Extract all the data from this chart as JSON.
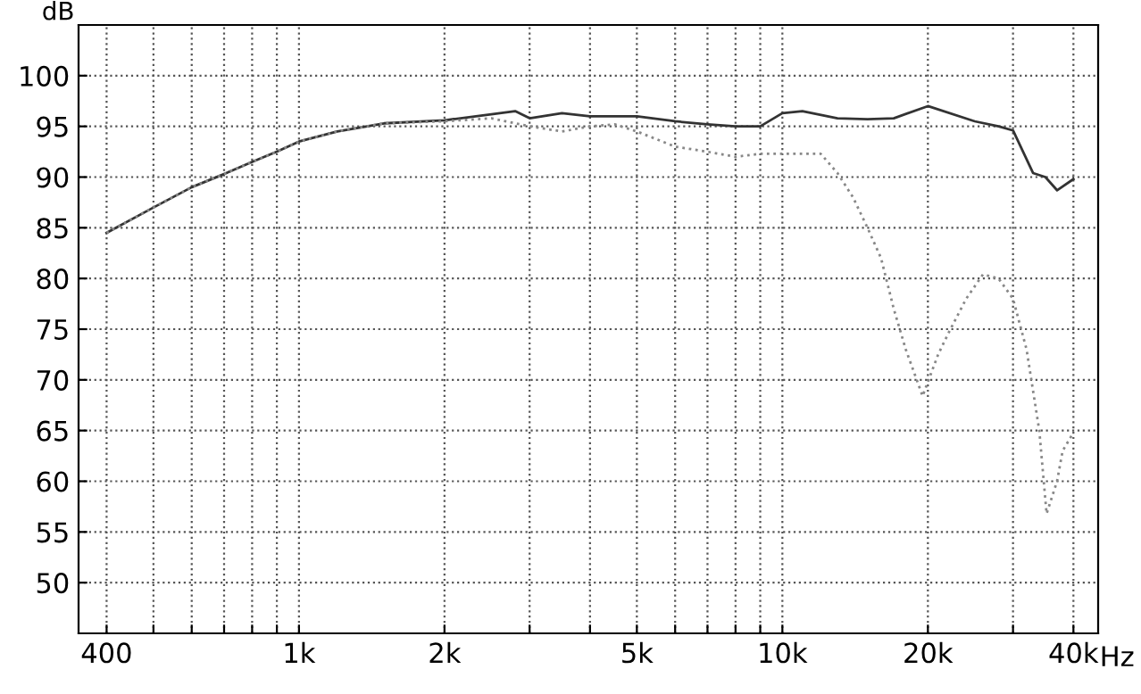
{
  "chart_data": {
    "type": "line",
    "ylabel": "dB",
    "log": "x",
    "grid": true,
    "legend": false,
    "xlim": [
      350,
      45000
    ],
    "ylim": [
      45,
      105
    ],
    "xticks": [
      400,
      {
        "value": 500,
        "label": null
      },
      {
        "value": 600,
        "label": null
      },
      {
        "value": 700,
        "label": null
      },
      {
        "value": 800,
        "label": null
      },
      {
        "value": 900,
        "label": null
      },
      {
        "value": 1000,
        "label": "1k"
      },
      {
        "value": 2000,
        "label": "2k"
      },
      {
        "value": 3000,
        "label": null
      },
      {
        "value": 4000,
        "label": null
      },
      {
        "value": 5000,
        "label": "5k"
      },
      {
        "value": 6000,
        "label": null
      },
      {
        "value": 7000,
        "label": null
      },
      {
        "value": 8000,
        "label": null
      },
      {
        "value": 9000,
        "label": null
      },
      {
        "value": 10000,
        "label": "10k"
      },
      {
        "value": 20000,
        "label": "20k"
      },
      {
        "value": 30000,
        "label": null
      },
      {
        "value": 40000,
        "label": "40k"
      }
    ],
    "xlabel": "Hz",
    "yticks": [
      50,
      55,
      60,
      65,
      70,
      75,
      80,
      85,
      90,
      95,
      100
    ],
    "series": [
      {
        "color": "#333333",
        "line_style": "solid",
        "x": [
          400,
          500,
          600,
          700,
          800,
          900,
          1000,
          1200,
          1500,
          2000,
          2500,
          2800,
          3000,
          3500,
          4000,
          5000,
          6000,
          7000,
          8000,
          9000,
          10000,
          11000,
          13000,
          15000,
          17000,
          20000,
          25000,
          28000,
          30000,
          33000,
          35000,
          37000,
          40000
        ],
        "values": [
          84.5,
          87,
          89,
          90.3,
          91.5,
          92.5,
          93.5,
          94.5,
          95.3,
          95.6,
          96.2,
          96.5,
          95.8,
          96.3,
          96,
          96,
          95.5,
          95.2,
          95,
          95,
          96.3,
          96.5,
          95.8,
          95.7,
          95.8,
          97,
          95.5,
          95,
          94.6,
          90.4,
          90,
          88.7,
          89.8
        ]
      },
      {
        "color": "#888888",
        "line_style": "dotted",
        "x": [
          400,
          500,
          600,
          700,
          800,
          900,
          1000,
          1200,
          1500,
          2000,
          2500,
          3000,
          3500,
          4000,
          4500,
          5000,
          6000,
          7000,
          8000,
          9000,
          10000,
          12000,
          13000,
          14000,
          15000,
          16000,
          17000,
          18000,
          19500,
          21000,
          22000,
          24000,
          26000,
          28000,
          30000,
          32000,
          34000,
          35200,
          37000,
          38000,
          40000
        ],
        "values": [
          84.5,
          87,
          89,
          90.3,
          91.5,
          92.5,
          93.5,
          94.5,
          95.3,
          95.5,
          95.8,
          95,
          94.5,
          95,
          95.2,
          94.5,
          93,
          92.5,
          92,
          92.3,
          92.3,
          92.3,
          90.4,
          88,
          85,
          82,
          77,
          73,
          68.4,
          72.5,
          74.5,
          78,
          80.4,
          80,
          78,
          73,
          65,
          56.8,
          60,
          63,
          64.8
        ]
      }
    ]
  }
}
